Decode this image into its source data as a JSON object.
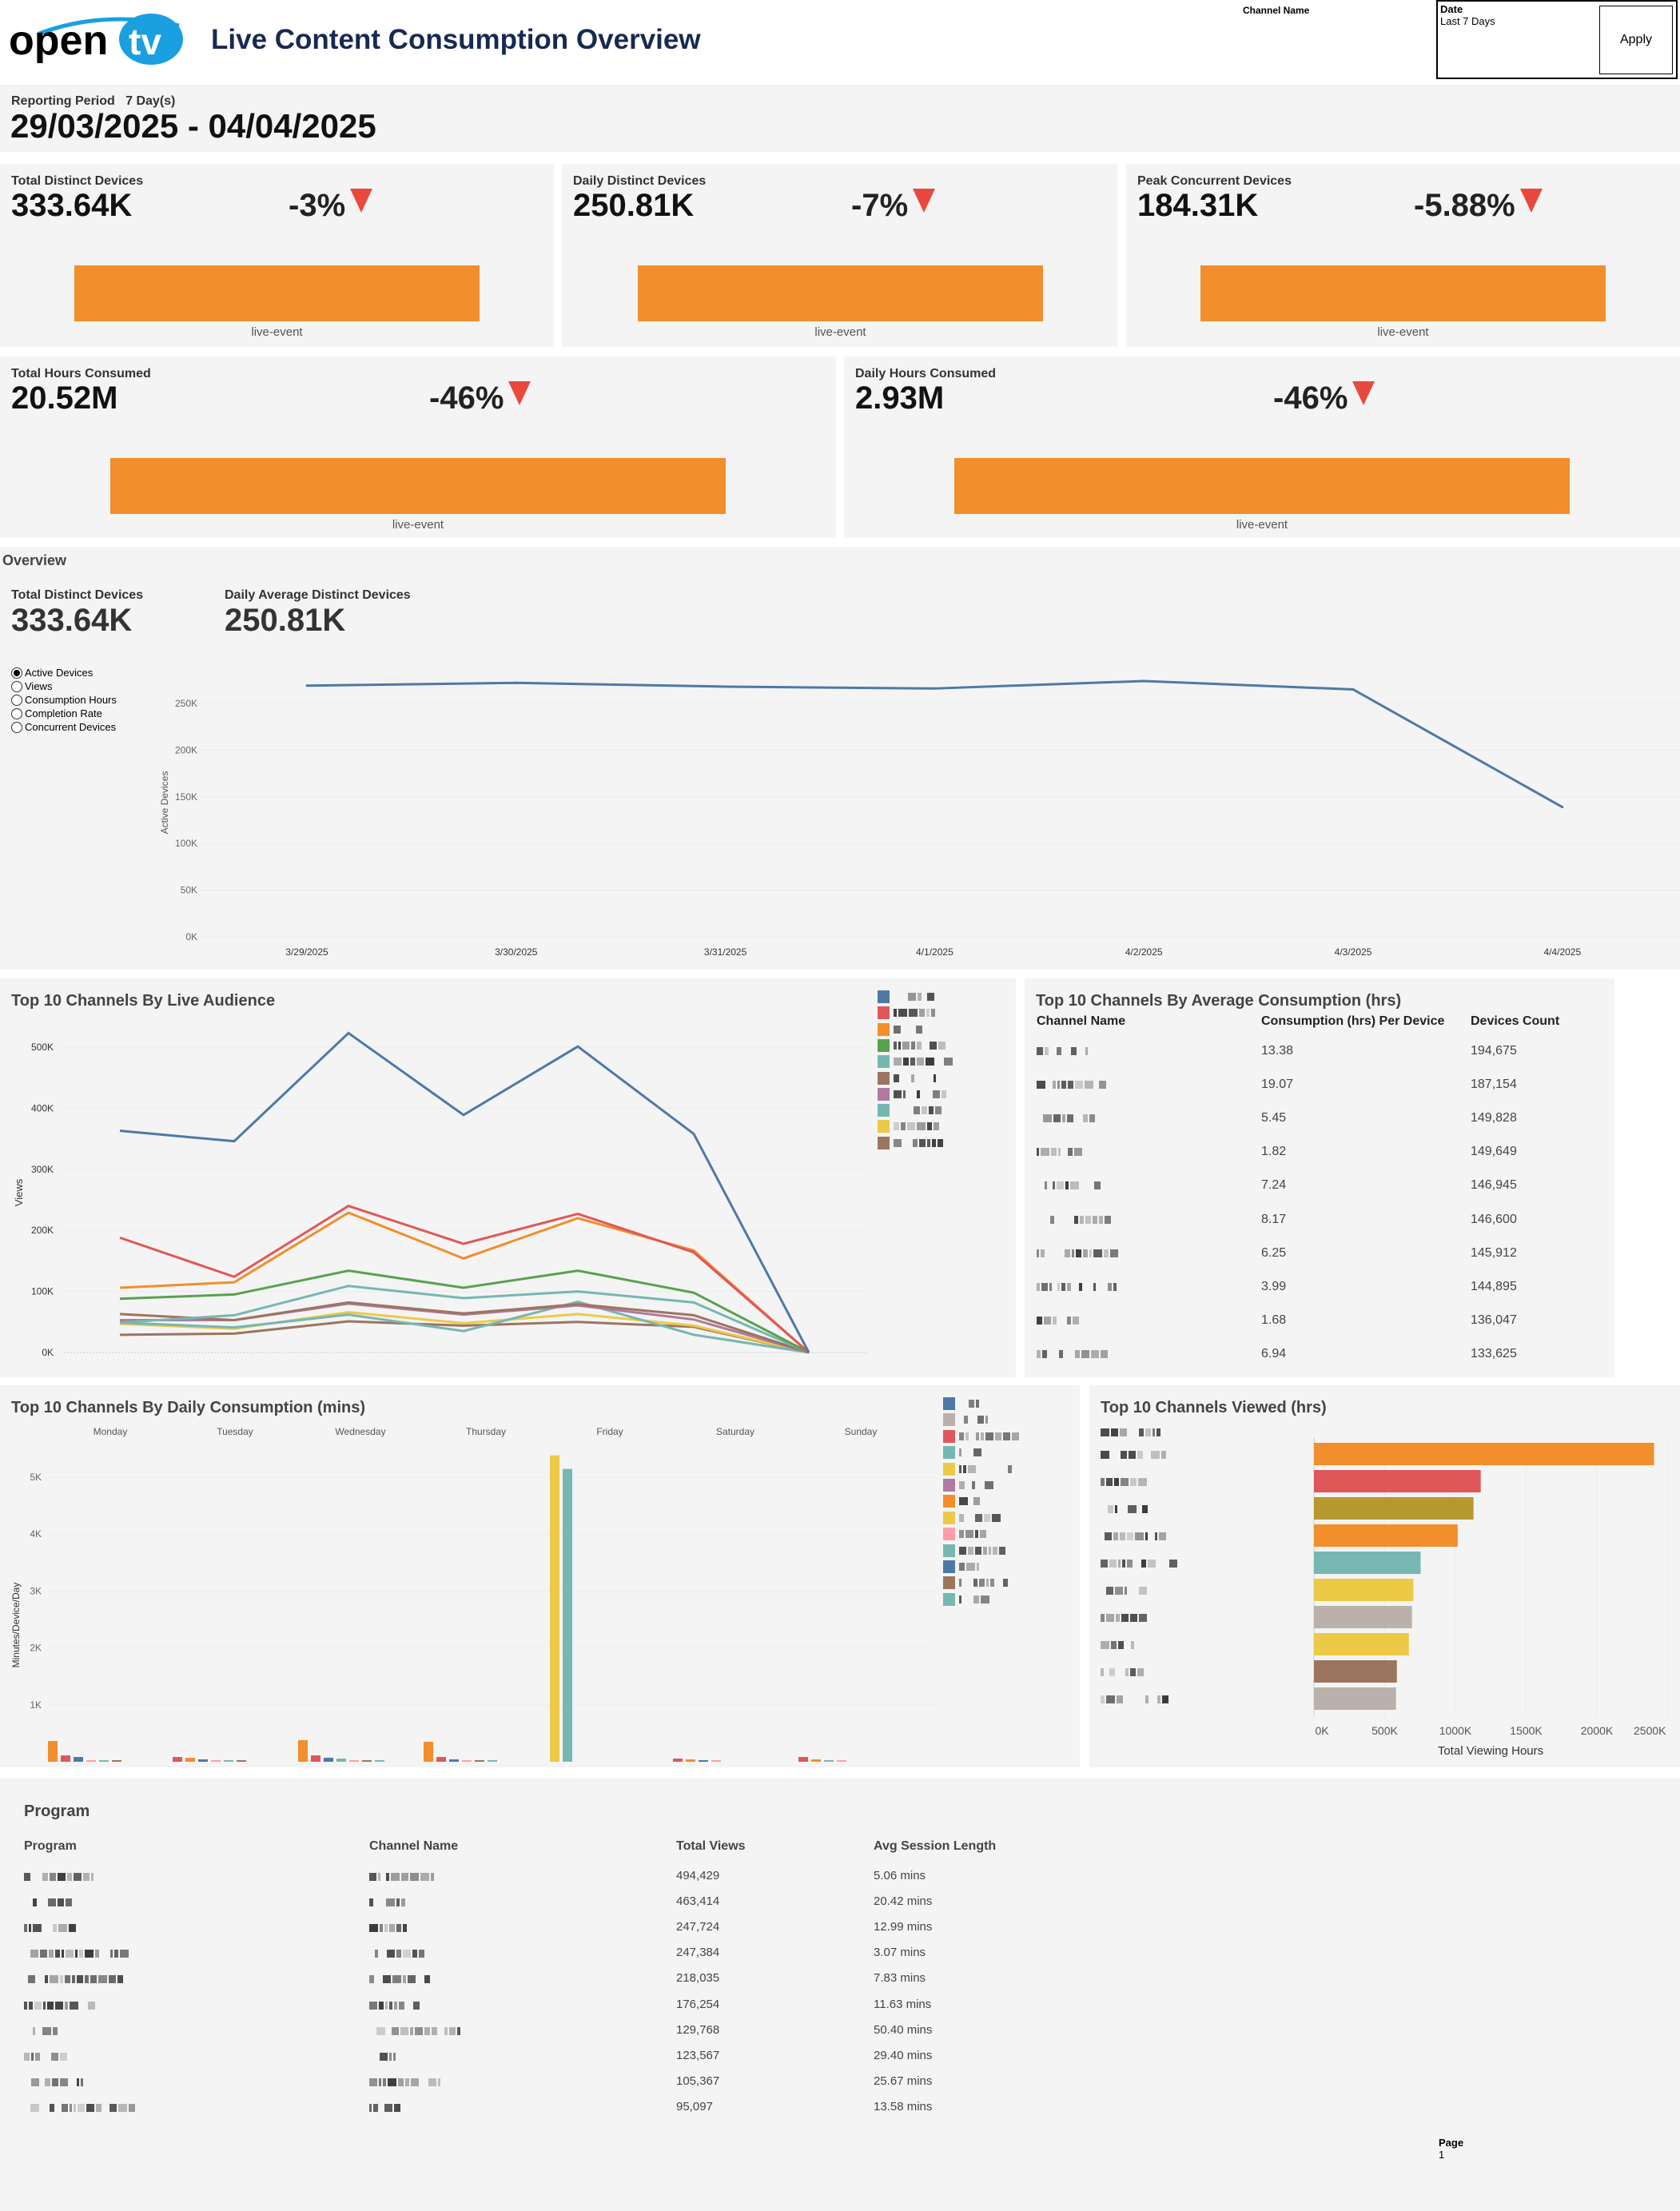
{
  "header": {
    "logo_text": "opentv",
    "title": "Live Content Consumption Overview",
    "channel_filter_label": "Channel Name",
    "date_filter": {
      "label": "Date",
      "value": "Last 7 Days"
    },
    "apply_label": "Apply"
  },
  "reporting": {
    "label": "Reporting Period",
    "days": "7 Day(s)",
    "range": "29/03/2025 - 04/04/2025"
  },
  "kpis": [
    {
      "title": "Total Distinct Devices",
      "value": "333.64K",
      "change": "-3%",
      "direction": "down",
      "category": "live-event"
    },
    {
      "title": "Daily Distinct Devices",
      "value": "250.81K",
      "change": "-7%",
      "direction": "down",
      "category": "live-event"
    },
    {
      "title": "Peak Concurrent Devices",
      "value": "184.31K",
      "change": "-5.88%",
      "direction": "down",
      "category": "live-event"
    },
    {
      "title": "Total Hours Consumed",
      "value": "20.52M",
      "change": "-46%",
      "direction": "down",
      "category": "live-event"
    },
    {
      "title": "Daily Hours Consumed",
      "value": "2.93M",
      "change": "-46%",
      "direction": "down",
      "category": "live-event"
    }
  ],
  "overview": {
    "title": "Overview",
    "total_label": "Total Distinct Devices",
    "total_value": "333.64K",
    "daily_label": "Daily Average Distinct Devices",
    "daily_value": "250.81K",
    "metrics": [
      "Active Devices",
      "Views",
      "Consumption Hours",
      "Completion Rate",
      "Concurrent Devices"
    ],
    "selected_metric": "Active Devices"
  },
  "colors": {
    "accent": "#f28e2b",
    "down": "#e8493c",
    "title": "#172a4f",
    "panel": "#f4f4f4"
  },
  "chart_data": [
    {
      "type": "line",
      "ylabel": "Active Devices",
      "x": [
        "3/29/2025",
        "3/30/2025",
        "3/31/2025",
        "4/1/2025",
        "4/2/2025",
        "4/3/2025",
        "4/4/2025"
      ],
      "yticks": [
        "0K",
        "50K",
        "100K",
        "150K",
        "200K",
        "250K"
      ],
      "ylim": [
        0,
        300000
      ],
      "grid": true,
      "series": [
        {
          "color": "#4e79a7",
          "values": [
            269000,
            272000,
            268000,
            266000,
            274000,
            265000,
            139000
          ]
        }
      ]
    },
    {
      "type": "line",
      "title": "Top 10 Channels By Live Audience",
      "ylabel": "Views",
      "yticks": [
        "0K",
        "100K",
        "200K",
        "300K",
        "400K",
        "500K"
      ],
      "ylim": [
        0,
        540000
      ],
      "legend": "top-right",
      "series": [
        {
          "color": "#4e79a7",
          "values": [
            363000,
            346000,
            523000,
            389000,
            501000,
            358000,
            0
          ]
        },
        {
          "color": "#e15759",
          "values": [
            188000,
            124000,
            240000,
            178000,
            227000,
            164000,
            0
          ]
        },
        {
          "color": "#f28e2b",
          "values": [
            106000,
            115000,
            229000,
            154000,
            220000,
            167000,
            0
          ]
        },
        {
          "color": "#59a14f",
          "values": [
            88000,
            95000,
            134000,
            106000,
            134000,
            98000,
            0
          ]
        },
        {
          "color": "#76b7b2",
          "values": [
            49000,
            61000,
            109000,
            89000,
            100000,
            82000,
            0
          ]
        },
        {
          "color": "#9c755f",
          "values": [
            63000,
            53000,
            82000,
            64000,
            79000,
            61000,
            0
          ]
        },
        {
          "color": "#b07aa1",
          "values": [
            53000,
            53000,
            80000,
            62000,
            77000,
            54000,
            0
          ]
        },
        {
          "color": "#76b7b2",
          "values": [
            49000,
            41000,
            62000,
            35000,
            83000,
            29000,
            0
          ]
        },
        {
          "color": "#edc948",
          "values": [
            47000,
            39000,
            66000,
            48000,
            63000,
            44000,
            0
          ]
        },
        {
          "color": "#9c755f",
          "values": [
            29000,
            31000,
            51000,
            44000,
            50000,
            42000,
            0
          ]
        }
      ]
    },
    {
      "type": "table",
      "title": "Top 10 Channels By Average Consumption (hrs)",
      "columns": [
        "Channel Name",
        "Consumption (hrs) Per Device",
        "Devices Count"
      ],
      "rows": [
        [
          "",
          "13.38",
          "194,675"
        ],
        [
          "",
          "19.07",
          "187,154"
        ],
        [
          "",
          "5.45",
          "149,828"
        ],
        [
          "",
          "1.82",
          "149,649"
        ],
        [
          "",
          "7.24",
          "146,945"
        ],
        [
          "",
          "8.17",
          "146,600"
        ],
        [
          "",
          "6.25",
          "145,912"
        ],
        [
          "",
          "3.99",
          "144,895"
        ],
        [
          "",
          "1.68",
          "136,047"
        ],
        [
          "",
          "6.94",
          "133,625"
        ]
      ]
    },
    {
      "type": "bar",
      "title": "Top 10 Channels By Daily Consumption (mins)",
      "ylabel": "Minutes/Device/Day",
      "categories": [
        "Monday",
        "Tuesday",
        "Wednesday",
        "Thursday",
        "Friday",
        "Saturday",
        "Sunday"
      ],
      "yticks": [
        "1K",
        "2K",
        "3K",
        "4K",
        "5K"
      ],
      "ylim": [
        0,
        5500
      ],
      "legend": "top-right",
      "legend_colors": [
        "#4e79a7",
        "#bab0ac",
        "#e15759",
        "#76b7b2",
        "#edc948",
        "#b07aa1",
        "#f28e2b",
        "#edc948",
        "#ff9da7",
        "#76b7b2",
        "#4e79a7",
        "#9c755f",
        "#76b7b2"
      ],
      "groups": [
        [
          {
            "color": "#f28e2b",
            "value": 365
          },
          {
            "color": "#e15759",
            "value": 112
          },
          {
            "color": "#4e79a7",
            "value": 84
          },
          {
            "color": "#ff9da7",
            "value": 28
          },
          {
            "color": "#76b7b2",
            "value": 28
          },
          {
            "color": "#9c755f",
            "value": 28
          }
        ],
        [
          {
            "color": "#e15759",
            "value": 84
          },
          {
            "color": "#f28e2b",
            "value": 70
          },
          {
            "color": "#4e79a7",
            "value": 42
          },
          {
            "color": "#ff9da7",
            "value": 14
          },
          {
            "color": "#76b7b2",
            "value": 14
          },
          {
            "color": "#9c755f",
            "value": 14
          }
        ],
        [
          {
            "color": "#f28e2b",
            "value": 380
          },
          {
            "color": "#e15759",
            "value": 112
          },
          {
            "color": "#4e79a7",
            "value": 70
          },
          {
            "color": "#76b7b2",
            "value": 56
          },
          {
            "color": "#ff9da7",
            "value": 28
          },
          {
            "color": "#9c755f",
            "value": 28
          },
          {
            "color": "#76b7b2",
            "value": 14
          }
        ],
        [
          {
            "color": "#f28e2b",
            "value": 351
          },
          {
            "color": "#e15759",
            "value": 84
          },
          {
            "color": "#4e79a7",
            "value": 42
          },
          {
            "color": "#ff9da7",
            "value": 14
          },
          {
            "color": "#9c755f",
            "value": 14
          },
          {
            "color": "#76b7b2",
            "value": 14
          }
        ],
        [
          {
            "color": "#edc948",
            "value": 5384
          },
          {
            "color": "#76b7b2",
            "value": 5145
          }
        ],
        [
          {
            "color": "#e15759",
            "value": 56
          },
          {
            "color": "#f28e2b",
            "value": 42
          },
          {
            "color": "#4e79a7",
            "value": 28
          },
          {
            "color": "#ff9da7",
            "value": 14
          }
        ],
        [
          {
            "color": "#e15759",
            "value": 84
          },
          {
            "color": "#f28e2b",
            "value": 42
          },
          {
            "color": "#76b7b2",
            "value": 28
          },
          {
            "color": "#ff9da7",
            "value": 14
          }
        ]
      ]
    },
    {
      "type": "bar",
      "orientation": "horizontal",
      "title": "Top 10 Channels Viewed (hrs)",
      "xlabel": "Total Viewing Hours",
      "xticks": [
        "0K",
        "500K",
        "1000K",
        "1500K",
        "2000K",
        "2500K"
      ],
      "xlim": [
        0,
        2500000
      ],
      "values": [
        2404000,
        1179000,
        1128000,
        1016000,
        754000,
        703000,
        693000,
        671000,
        586000,
        580000
      ],
      "colors": [
        "#f28e2b",
        "#e15759",
        "#b5992f",
        "#f28e2b",
        "#76b7b2",
        "#edc948",
        "#bab0ac",
        "#edc948",
        "#9c755f",
        "#bab0ac"
      ]
    },
    {
      "type": "table",
      "title": "Program",
      "columns": [
        "Program",
        "Channel Name",
        "Total Views",
        "Avg Session Length"
      ],
      "rows": [
        [
          "",
          "",
          "494,429",
          "5.06 mins"
        ],
        [
          "",
          "",
          "463,414",
          "20.42 mins"
        ],
        [
          "",
          "",
          "247,724",
          "12.99 mins"
        ],
        [
          "",
          "",
          "247,384",
          "3.07 mins"
        ],
        [
          "",
          "",
          "218,035",
          "7.83 mins"
        ],
        [
          "",
          "",
          "176,254",
          "11.63 mins"
        ],
        [
          "",
          "",
          "129,768",
          "50.40 mins"
        ],
        [
          "",
          "",
          "123,567",
          "29.40 mins"
        ],
        [
          "",
          "",
          "105,367",
          "25.67 mins"
        ],
        [
          "",
          "",
          "95,097",
          "13.58 mins"
        ]
      ]
    }
  ],
  "footer": {
    "page_label": "Page",
    "page_value": "1"
  }
}
